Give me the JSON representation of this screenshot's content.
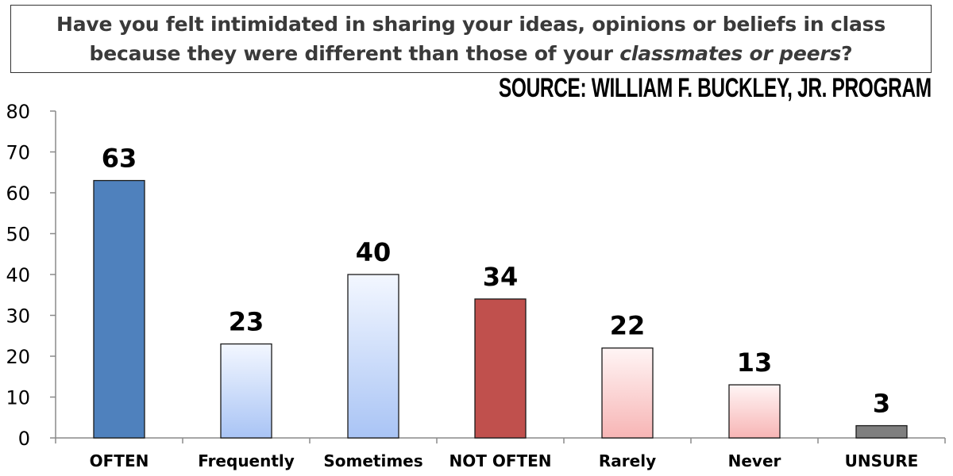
{
  "title": {
    "line1": "Have you felt intimidated in sharing your ideas, opinions or beliefs in class",
    "line2_pre": "because they were different than those of your ",
    "line2_em": "classmates or peers",
    "line2_post": "?"
  },
  "source": "SOURCE: WILLIAM F. BUCKLEY, JR. PROGRAM",
  "chart_data": {
    "type": "bar",
    "categories": [
      "OFTEN",
      "Frequently",
      "Sometimes",
      "NOT OFTEN",
      "Rarely",
      "Never",
      "UNSURE"
    ],
    "values": [
      63,
      23,
      40,
      34,
      22,
      13,
      3
    ],
    "data_labels": [
      "63",
      "23",
      "40",
      "34",
      "22",
      "13",
      "3"
    ],
    "yticks": [
      "0",
      "10",
      "20",
      "30",
      "40",
      "50",
      "60",
      "70",
      "80"
    ],
    "ylim": [
      0,
      80
    ],
    "grid": false,
    "legend": "none",
    "bar_styles": [
      {
        "fill": "#4f81bd"
      },
      {
        "gradient": [
          "#f3f7ff",
          "#a9c4f5"
        ]
      },
      {
        "gradient": [
          "#f3f7ff",
          "#a9c4f5"
        ]
      },
      {
        "fill": "#c0504d"
      },
      {
        "gradient": [
          "#fff5f5",
          "#f7b5b5"
        ]
      },
      {
        "gradient": [
          "#fff5f5",
          "#f7b5b5"
        ]
      },
      {
        "fill": "#7f7f7f"
      }
    ],
    "bar_outline": "#1a1a1a"
  }
}
